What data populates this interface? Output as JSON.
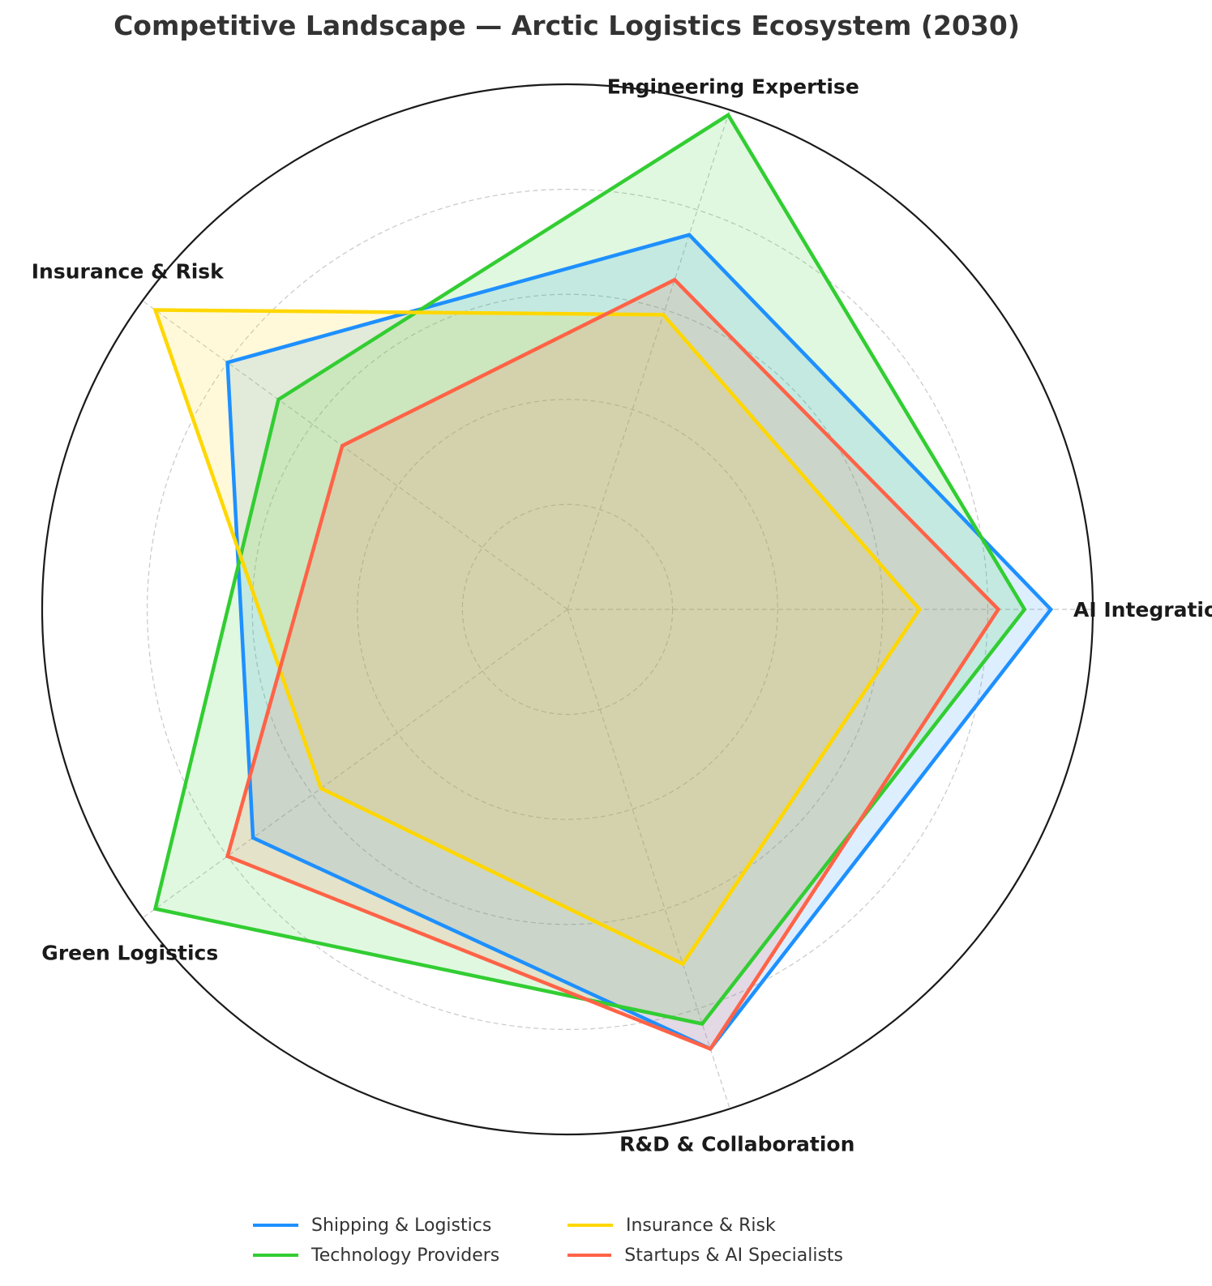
{
  "title": "Competitive Landscape — Arctic Logistics Ecosystem (2030)",
  "chart_data": {
    "type": "radar",
    "axes": [
      "AI Integration",
      "Engineering Expertise",
      "Insurance & Risk",
      "Green Logistics",
      "R&D & Collaboration"
    ],
    "rmax": 10,
    "rings": [
      2,
      4,
      6,
      8
    ],
    "grid": true,
    "legend_position": "bottom",
    "series": [
      {
        "name": "Shipping & Logistics",
        "color": "#1e90ff",
        "values": [
          9.2,
          7.5,
          8.0,
          7.4,
          8.8
        ]
      },
      {
        "name": "Technology Providers",
        "color": "#32cd32",
        "values": [
          8.7,
          9.9,
          6.8,
          9.7,
          8.3
        ]
      },
      {
        "name": "Insurance & Risk",
        "color": "#ffd700",
        "values": [
          6.7,
          5.9,
          9.7,
          5.8,
          7.1
        ]
      },
      {
        "name": "Startups & AI Specialists",
        "color": "#ff6347",
        "values": [
          8.2,
          6.6,
          5.3,
          8.0,
          8.8
        ]
      }
    ]
  }
}
